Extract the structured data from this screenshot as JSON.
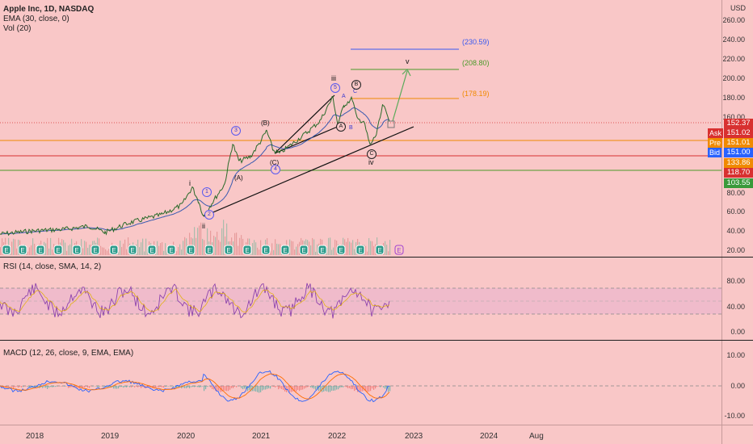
{
  "legend": {
    "title": "Apple Inc, 1D, NASDAQ",
    "ema": "EMA (30, close, 0)",
    "vol": "Vol (20)"
  },
  "rsi_legend": "RSI (14, close, SMA, 14, 2)",
  "macd_legend": "MACD (12, 26, close, 9, EMA, EMA)",
  "currency": "USD",
  "price_ticks": [
    "260.00",
    "240.00",
    "220.00",
    "200.00",
    "180.00",
    "160.00",
    "80.00",
    "60.00",
    "40.00",
    "20.00"
  ],
  "rsi_ticks": [
    "80.00",
    "40.00",
    "0.00"
  ],
  "macd_ticks": [
    "10.00",
    "0.00",
    "-10.00"
  ],
  "x_labels": [
    "2018",
    "2019",
    "2020",
    "2021",
    "2022",
    "2023",
    "2024",
    "Aug"
  ],
  "price_tags": {
    "last": "152.37",
    "ask_label": "Ask",
    "ask": "151.02",
    "pre_label": "Pre",
    "pre": "151.01",
    "bid_label": "Bid",
    "bid": "151.00",
    "orange": "133.86",
    "red": "118.70",
    "green": "103.55"
  },
  "targets": {
    "t1": "(230.59)",
    "t2": "(208.80)",
    "t3": "(178.19)"
  },
  "wave_labels": {
    "i": "i",
    "ii": "ii",
    "iii": "iii",
    "iv": "iv",
    "v": "v",
    "w1": "1",
    "w2": "2",
    "w3": "3",
    "w4": "4",
    "w5": "5",
    "A_paren": "(A)",
    "B_paren": "(B)",
    "C_paren": "(C)",
    "A": "A",
    "B": "B",
    "C": "C",
    "Acirc": "A",
    "Bcirc": "B",
    "Ccirc": "C"
  },
  "earnings_marker": "E",
  "colors": {
    "background": "#f9c7c7",
    "price": "#2a6a2a",
    "ema": "#3a5ab0",
    "rsi": "#8e44ad",
    "macd": "#2962ff",
    "signal": "#ff6d00",
    "green_target": "#4a9a2a",
    "blue_target": "#3a5af0",
    "orange_target": "#f08a00",
    "red_level": "#d83030"
  }
}
